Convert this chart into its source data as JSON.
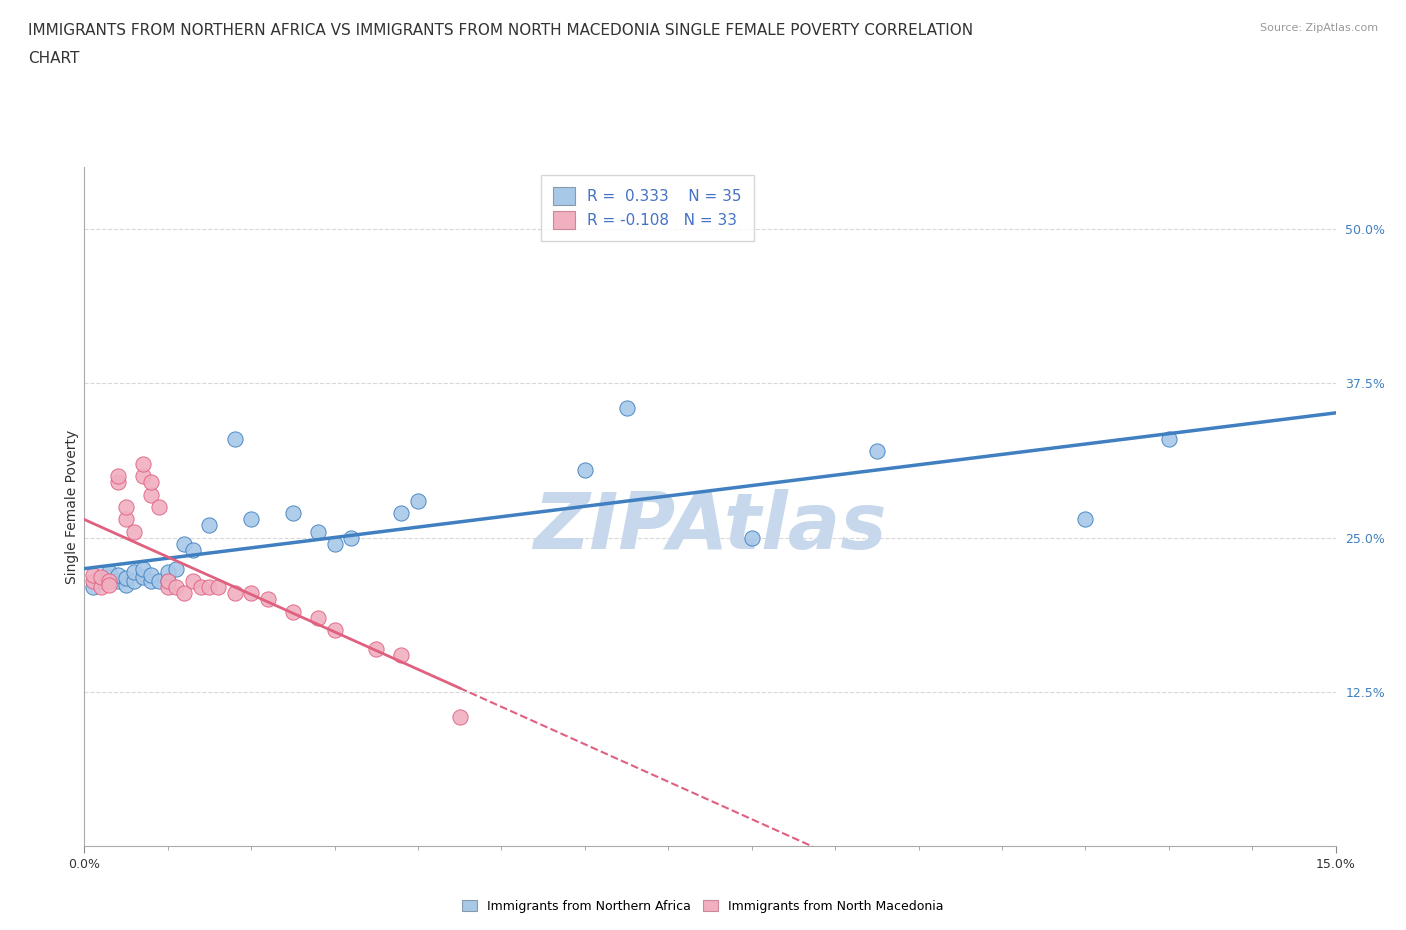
{
  "title_line1": "IMMIGRANTS FROM NORTHERN AFRICA VS IMMIGRANTS FROM NORTH MACEDONIA SINGLE FEMALE POVERTY CORRELATION",
  "title_line2": "CHART",
  "source": "Source: ZipAtlas.com",
  "ylabel": "Single Female Poverty",
  "xlim": [
    0.0,
    0.15
  ],
  "ylim": [
    0.0,
    0.55
  ],
  "blue_R": "0.333",
  "blue_N": "35",
  "pink_R": "-0.108",
  "pink_N": "33",
  "blue_color": "#a8c8e8",
  "pink_color": "#f0b0c0",
  "blue_line_color": "#4080c0",
  "pink_line_color": "#e06080",
  "background_color": "#ffffff",
  "grid_color": "#d8d8d8",
  "watermark_color": "#c8d8ec",
  "blue_x": [
    0.001,
    0.002,
    0.003,
    0.003,
    0.004,
    0.004,
    0.005,
    0.005,
    0.006,
    0.006,
    0.007,
    0.007,
    0.008,
    0.008,
    0.009,
    0.01,
    0.01,
    0.011,
    0.012,
    0.013,
    0.015,
    0.018,
    0.02,
    0.025,
    0.028,
    0.03,
    0.032,
    0.038,
    0.04,
    0.06,
    0.065,
    0.08,
    0.095,
    0.12,
    0.13
  ],
  "blue_y": [
    0.21,
    0.215,
    0.218,
    0.222,
    0.215,
    0.22,
    0.212,
    0.217,
    0.215,
    0.222,
    0.218,
    0.225,
    0.215,
    0.22,
    0.215,
    0.215,
    0.222,
    0.225,
    0.245,
    0.24,
    0.26,
    0.33,
    0.265,
    0.27,
    0.255,
    0.245,
    0.25,
    0.27,
    0.28,
    0.305,
    0.355,
    0.25,
    0.32,
    0.265,
    0.33
  ],
  "pink_x": [
    0.001,
    0.001,
    0.002,
    0.002,
    0.003,
    0.003,
    0.004,
    0.004,
    0.005,
    0.005,
    0.006,
    0.007,
    0.007,
    0.008,
    0.008,
    0.009,
    0.01,
    0.01,
    0.011,
    0.012,
    0.013,
    0.014,
    0.015,
    0.016,
    0.018,
    0.02,
    0.022,
    0.025,
    0.028,
    0.03,
    0.035,
    0.038,
    0.045
  ],
  "pink_y": [
    0.215,
    0.22,
    0.21,
    0.218,
    0.215,
    0.212,
    0.295,
    0.3,
    0.265,
    0.275,
    0.255,
    0.3,
    0.31,
    0.285,
    0.295,
    0.275,
    0.21,
    0.215,
    0.21,
    0.205,
    0.215,
    0.21,
    0.21,
    0.21,
    0.205,
    0.205,
    0.2,
    0.19,
    0.185,
    0.175,
    0.16,
    0.155,
    0.105
  ],
  "title_fontsize": 11,
  "axis_label_fontsize": 10,
  "tick_fontsize": 9,
  "legend_fontsize": 11
}
